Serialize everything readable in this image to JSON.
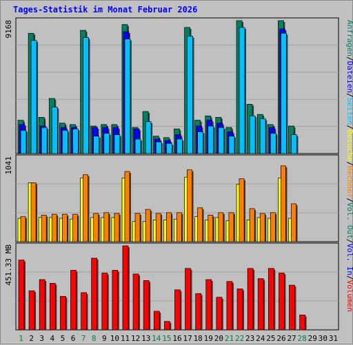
{
  "page": {
    "title": "Tages-Statistik im Monat Februar 2026"
  },
  "colors": {
    "background": "#c0c0c0",
    "plot_bg": "#c0c0c0",
    "grid": "#a0a0a0",
    "weekday": "#000000",
    "weekend": "#008040",
    "hits": "#008060",
    "files": "#0000ff",
    "pages": "#00c0ff",
    "visits": "#ffff00",
    "sites": "#ff8000",
    "kbytes": "#ff0000",
    "legend_hits": "#008060",
    "legend_files": "#0000ff",
    "legend_pages": "#00c0ff",
    "legend_visits": "#ffff00",
    "legend_sites": "#ff8000",
    "legend_vol": "#ff0000"
  },
  "chart_data": [
    {
      "type": "bar",
      "panel": "requests",
      "ymax_label": "9168",
      "ylim": [
        0,
        9168
      ],
      "categories": [
        "1",
        "2",
        "3",
        "4",
        "5",
        "6",
        "7",
        "8",
        "9",
        "10",
        "11",
        "12",
        "13",
        "14",
        "15",
        "16",
        "17",
        "18",
        "19",
        "20",
        "21",
        "22",
        "23",
        "24",
        "25",
        "26",
        "27",
        "28"
      ],
      "weekend": [
        1,
        7,
        8,
        14,
        15,
        21,
        22,
        28
      ],
      "series": [
        {
          "name": "Anfragen",
          "values": [
            2300,
            8300,
            2500,
            3800,
            2100,
            2000,
            8500,
            1900,
            2000,
            2000,
            8900,
            1800,
            2900,
            1200,
            1100,
            1700,
            8700,
            2300,
            2600,
            2500,
            1800,
            9168,
            3400,
            2700,
            2000,
            9168,
            1900,
            0
          ]
        },
        {
          "name": "Dateien",
          "values": [
            2000,
            0,
            1900,
            0,
            1800,
            1800,
            0,
            1800,
            1800,
            1800,
            8400,
            1700,
            0,
            1000,
            900,
            1300,
            0,
            1900,
            2300,
            2100,
            1500,
            0,
            0,
            0,
            1800,
            8600,
            0,
            0
          ]
        },
        {
          "name": "Seiten",
          "values": [
            1600,
            7800,
            1800,
            3200,
            1600,
            1700,
            8000,
            1200,
            1400,
            1300,
            7900,
            1000,
            2200,
            800,
            700,
            1000,
            8100,
            1500,
            1900,
            1800,
            1200,
            8700,
            2600,
            2400,
            1400,
            8300,
            1300,
            0
          ]
        }
      ]
    },
    {
      "type": "bar",
      "panel": "visits",
      "ymax_label": "1041",
      "ylim": [
        0,
        1041
      ],
      "categories": [
        "1",
        "2",
        "3",
        "4",
        "5",
        "6",
        "7",
        "8",
        "9",
        "10",
        "11",
        "12",
        "13",
        "14",
        "15",
        "16",
        "17",
        "18",
        "19",
        "20",
        "21",
        "22",
        "23",
        "24",
        "25",
        "26",
        "27",
        "28"
      ],
      "series": [
        {
          "name": "Besuche",
          "values": [
            290,
            730,
            300,
            300,
            290,
            280,
            790,
            300,
            300,
            300,
            790,
            250,
            250,
            270,
            270,
            280,
            800,
            310,
            270,
            300,
            260,
            710,
            270,
            300,
            290,
            790,
            290,
            0
          ]
        },
        {
          "name": "Rechner",
          "values": [
            310,
            730,
            330,
            340,
            340,
            340,
            830,
            350,
            360,
            350,
            870,
            350,
            400,
            350,
            360,
            360,
            890,
            420,
            330,
            360,
            360,
            780,
            410,
            350,
            360,
            940,
            470,
            0
          ]
        }
      ]
    },
    {
      "type": "bar",
      "panel": "volume",
      "ymax_label": "451.33 MB",
      "ylim": [
        0,
        451.33
      ],
      "categories": [
        "1",
        "2",
        "3",
        "4",
        "5",
        "6",
        "7",
        "8",
        "9",
        "10",
        "11",
        "12",
        "13",
        "14",
        "15",
        "16",
        "17",
        "18",
        "19",
        "20",
        "21",
        "22",
        "23",
        "24",
        "25",
        "26",
        "27",
        "28"
      ],
      "series": [
        {
          "name": "Volumen",
          "values": [
            375,
            210,
            270,
            250,
            180,
            320,
            200,
            385,
            305,
            320,
            451.33,
            300,
            265,
            100,
            45,
            215,
            330,
            195,
            270,
            175,
            260,
            220,
            330,
            275,
            330,
            305,
            240,
            80
          ]
        }
      ]
    }
  ],
  "x_labels": [
    "1",
    "2",
    "3",
    "4",
    "5",
    "6",
    "7",
    "8",
    "9",
    "10",
    "11",
    "12",
    "13",
    "14",
    "15",
    "16",
    "17",
    "18",
    "19",
    "20",
    "21",
    "22",
    "23",
    "24",
    "25",
    "26",
    "27",
    "28",
    "29",
    "30",
    "31"
  ],
  "legend_right": {
    "requests": [
      {
        "text": "Anfragen",
        "color_key": "legend_hits"
      },
      {
        "text": "Dateien",
        "color_key": "legend_files"
      },
      {
        "text": "Seiten",
        "color_key": "legend_pages"
      },
      {
        "text": "Besuche",
        "color_key": "legend_visits"
      },
      {
        "text": "Rechner",
        "color_key": "legend_sites"
      },
      {
        "text": "Vol. Out",
        "color_key": "legend_hits"
      },
      {
        "text": "Vol. In",
        "color_key": "legend_files"
      },
      {
        "text": "Volumen",
        "color_key": "legend_vol"
      }
    ]
  }
}
